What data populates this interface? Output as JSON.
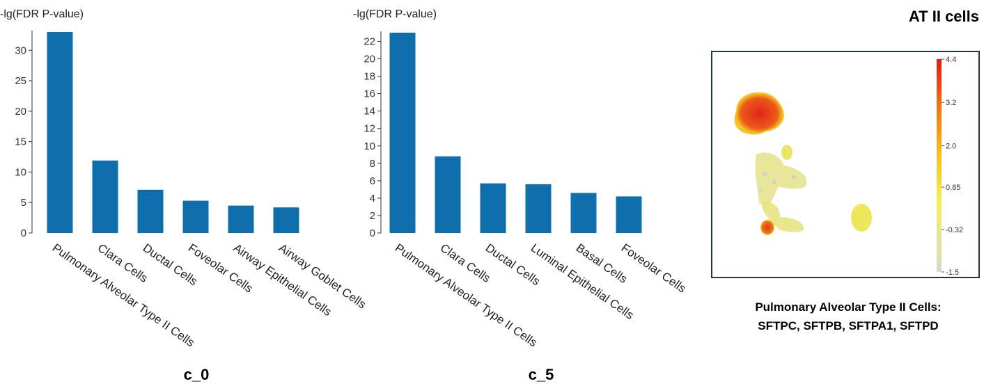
{
  "panel_right": {
    "title": "AT II cells",
    "caption_line1": "Pulmonary Alveolar Type II Cells:",
    "caption_line2": "SFTPC, SFTPB, SFTPA1, SFTPD"
  },
  "colors": {
    "bar": "#0f6fad",
    "frame": "#1f3550"
  },
  "chart_data": [
    {
      "type": "bar",
      "ylabel": "-lg(FDR P-value)",
      "xlabel": "c_0",
      "ylim": [
        0,
        33
      ],
      "yticks": [
        0,
        5,
        10,
        15,
        20,
        25,
        30
      ],
      "categories": [
        "Pulmonary Alveolar Type II Cells",
        "Clara Cells",
        "Ductal Cells",
        "Foveolar Cells",
        "Airway Epithelial Cells",
        "Airway Goblet Cells"
      ],
      "values": [
        33,
        11.9,
        7.1,
        5.3,
        4.5,
        4.2
      ]
    },
    {
      "type": "bar",
      "ylabel": "-lg(FDR P-value)",
      "xlabel": "c_5",
      "ylim": [
        0,
        23
      ],
      "yticks": [
        0,
        2,
        4,
        6,
        8,
        10,
        12,
        14,
        16,
        18,
        20,
        22
      ],
      "categories": [
        "Pulmonary Alveolar Type II Cells",
        "Clara Cells",
        "Ductal Cells",
        "Luminal Epithelial Cells",
        "Basal Cells",
        "Foveolar Cells"
      ],
      "values": [
        23,
        8.8,
        5.7,
        5.6,
        4.6,
        4.2
      ]
    },
    {
      "type": "heatmap",
      "colorbar_ticks": [
        "4.4",
        "3.2",
        "2.0",
        "0.85",
        "-0.32",
        "-1.5"
      ],
      "colorbar_range": [
        -1.5,
        4.4
      ],
      "colorbar_colors": [
        "#d8d8d0",
        "#f3f05a",
        "#f6c21e",
        "#ef6a17",
        "#e51a14"
      ]
    }
  ]
}
